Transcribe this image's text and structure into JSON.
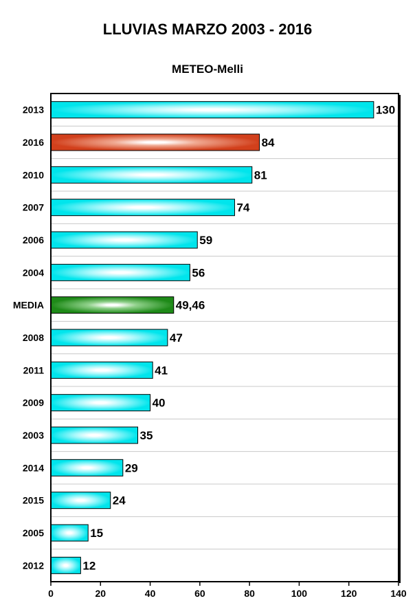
{
  "chart_data": {
    "type": "bar",
    "orientation": "horizontal",
    "title": "LLUVIAS MARZO 2003 - 2016",
    "subtitle": "METEO-Melli",
    "categories": [
      "2013",
      "2016",
      "2010",
      "2007",
      "2006",
      "2004",
      "MEDIA",
      "2008",
      "2011",
      "2009",
      "2003",
      "2014",
      "2015",
      "2005",
      "2012"
    ],
    "values": [
      130,
      84,
      81,
      74,
      59,
      56,
      49.46,
      47,
      41,
      40,
      35,
      29,
      24,
      15,
      12
    ],
    "data_labels": [
      "130",
      "84",
      "81",
      "74",
      "59",
      "56",
      "49,46",
      "47",
      "41",
      "40",
      "35",
      "29",
      "24",
      "15",
      "12"
    ],
    "bar_styles": [
      "cyan",
      "red",
      "cyan",
      "cyan",
      "cyan",
      "cyan",
      "green",
      "cyan",
      "cyan",
      "cyan",
      "cyan",
      "cyan",
      "cyan",
      "cyan",
      "cyan"
    ],
    "xlim": [
      0,
      140
    ],
    "x_ticks": [
      0,
      20,
      40,
      60,
      80,
      100,
      120,
      140
    ],
    "grid": "horizontal",
    "colors": {
      "cyan": "#00e5ec",
      "red": "#d2401c",
      "green": "#1e8a18"
    }
  }
}
